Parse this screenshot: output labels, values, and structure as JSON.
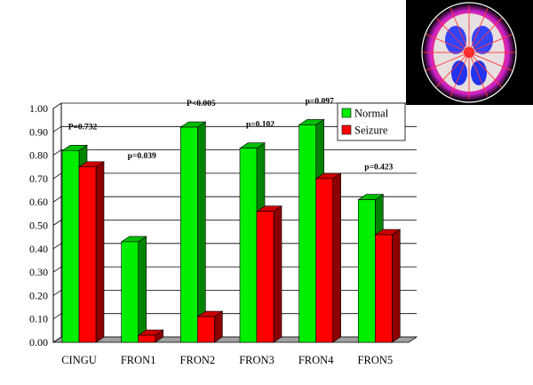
{
  "chart_data": {
    "type": "bar",
    "categories": [
      "CINGU",
      "FRON1",
      "FRON2",
      "FRON3",
      "FRON4",
      "FRON5"
    ],
    "series": [
      {
        "name": "Normal",
        "values": [
          0.82,
          0.43,
          0.92,
          0.83,
          0.93,
          0.61
        ],
        "color": "#00ee00"
      },
      {
        "name": "Seizure",
        "values": [
          0.75,
          0.03,
          0.11,
          0.56,
          0.7,
          0.46
        ],
        "color": "#ff0000"
      }
    ],
    "annotations": [
      "P=0.732",
      "p=0.039",
      "P<0.005",
      "p=0.102",
      "p=0.097",
      "p=0.423"
    ],
    "ylim": [
      0,
      1
    ],
    "yticks": [
      "0.00",
      "0.10",
      "0.20",
      "0.30",
      "0.40",
      "0.50",
      "0.60",
      "0.70",
      "0.80",
      "0.90",
      "1.00"
    ],
    "grid": true,
    "legend_position": "top-right",
    "style": "3d-bar"
  },
  "image": {
    "name": "brain-pet-scan",
    "colors": [
      "#000000",
      "#ffffff",
      "#ff3333",
      "#cc33cc",
      "#3344ff"
    ]
  }
}
